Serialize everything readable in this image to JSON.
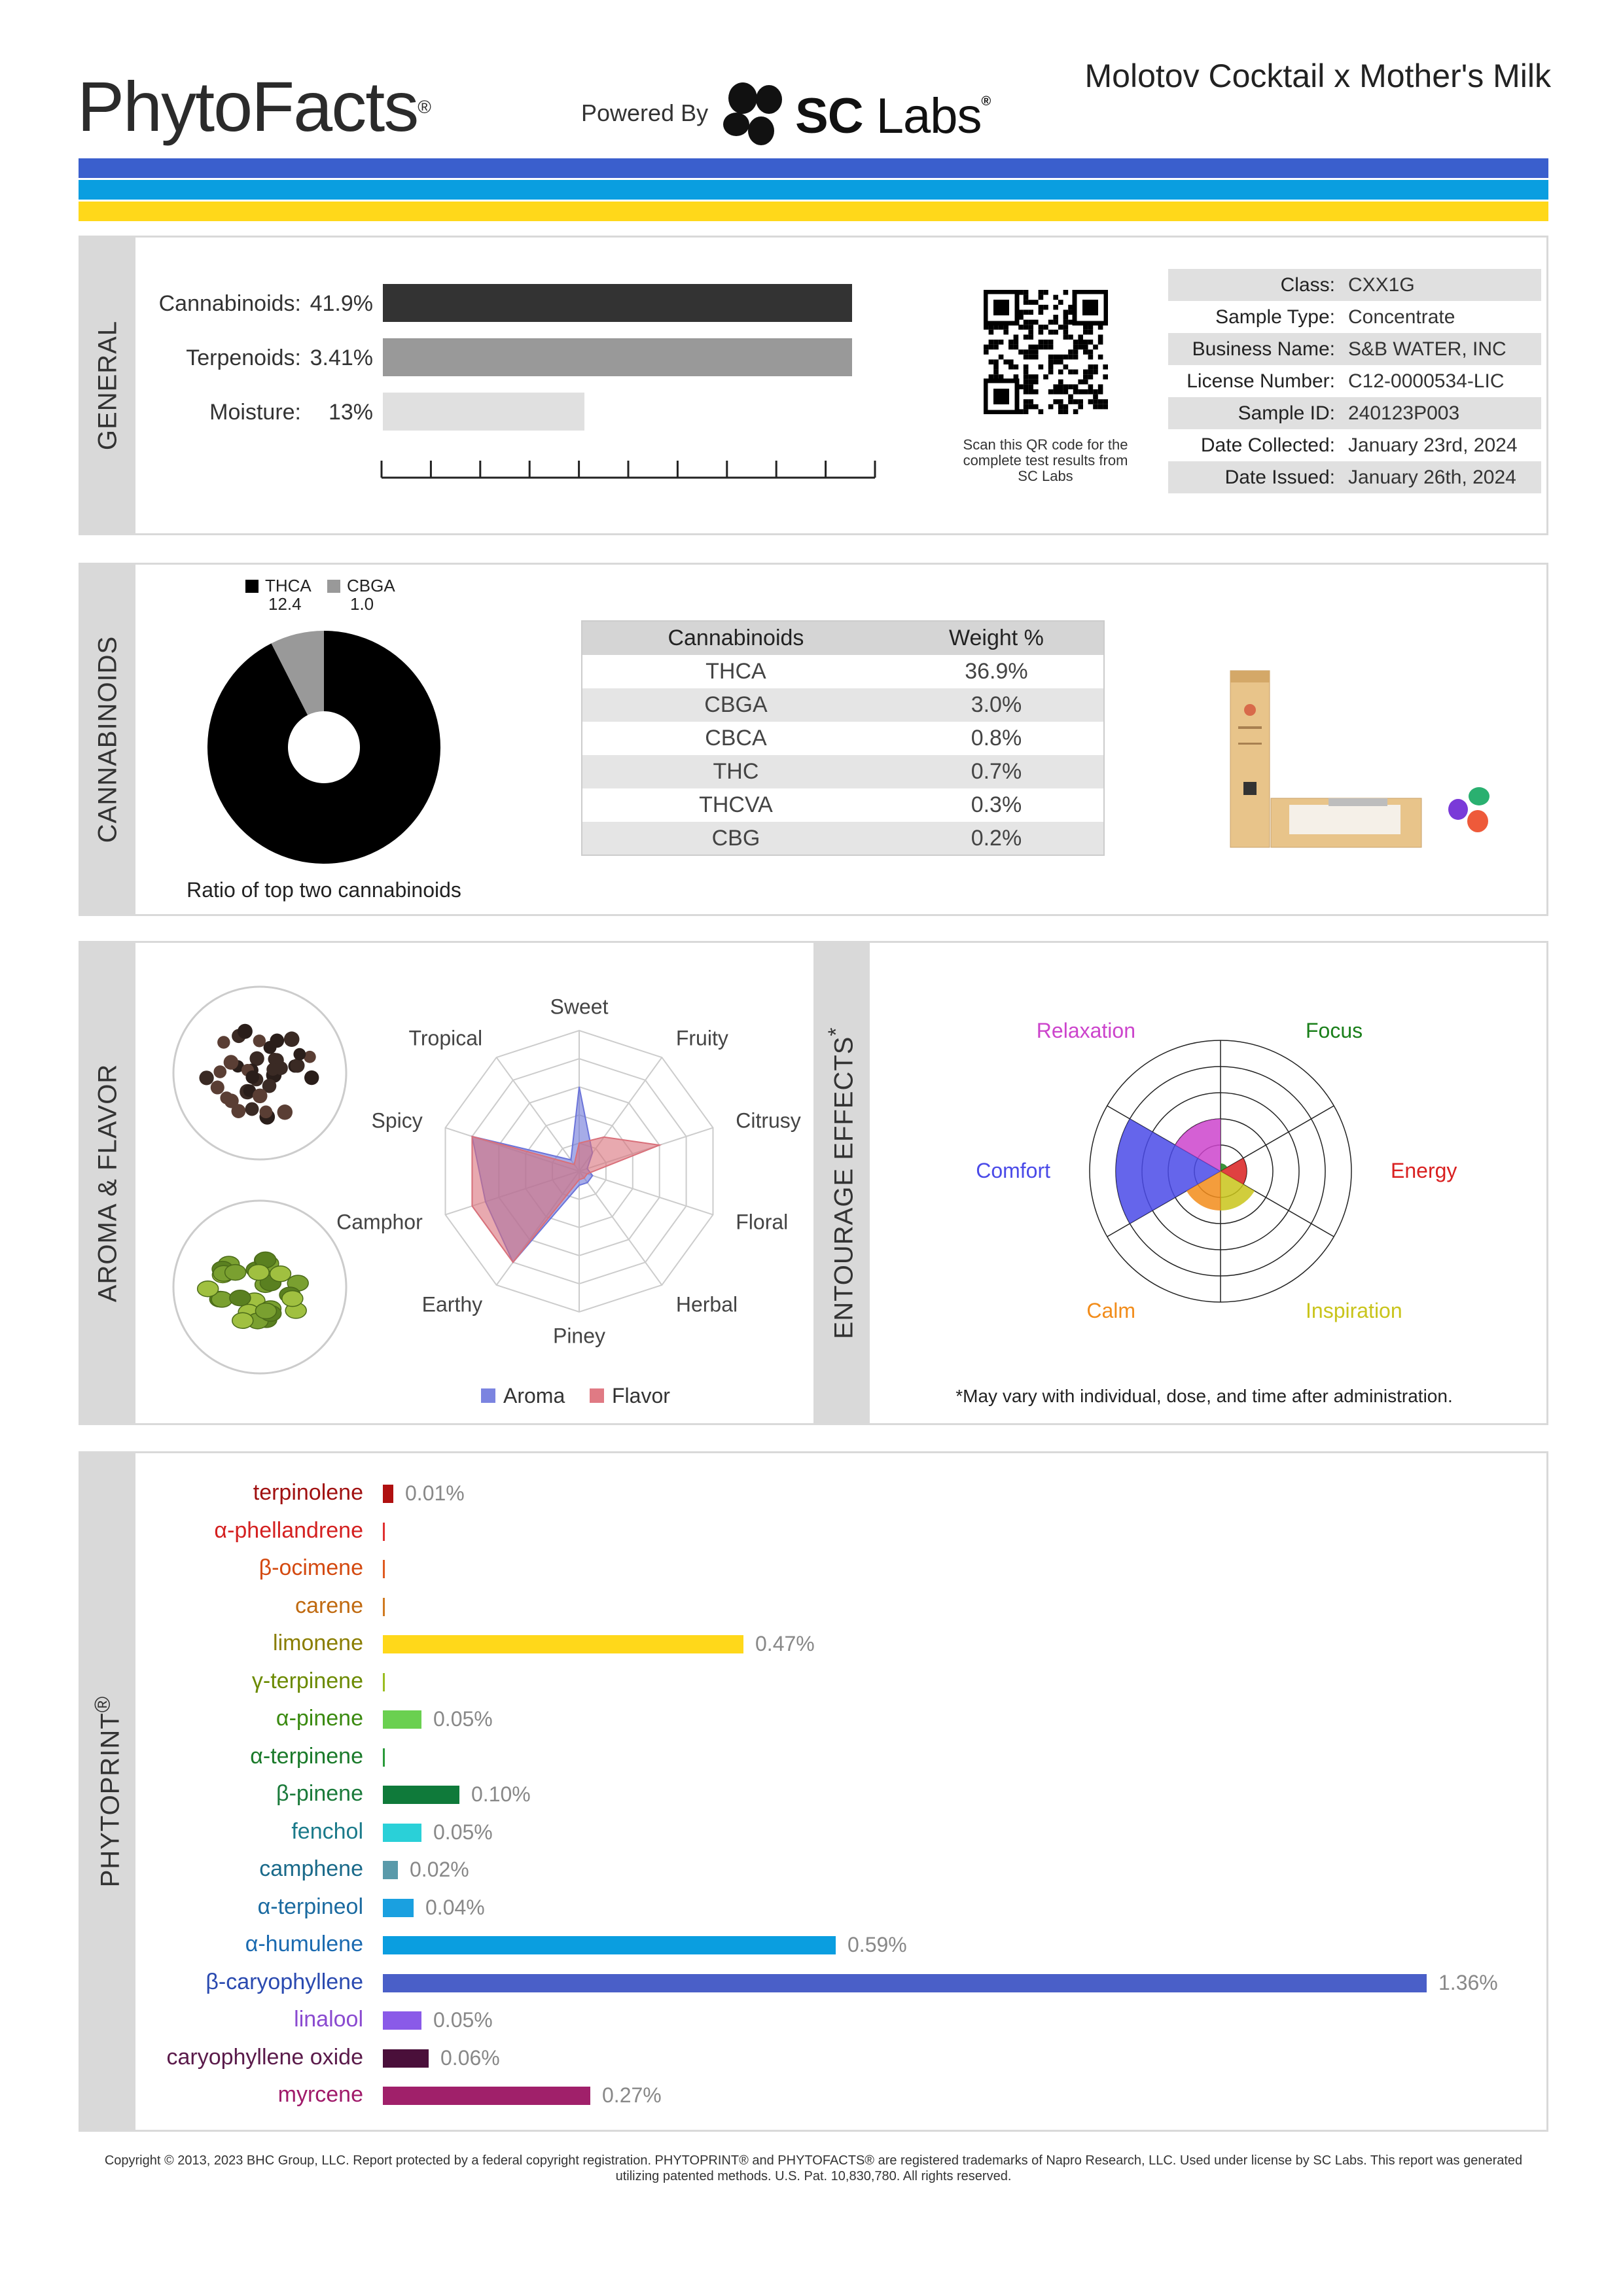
{
  "header": {
    "logo_text": "PhytoFacts",
    "logo_reg": "®",
    "powered_by": "Powered By",
    "partner_bold": "SC",
    "partner_light": " Labs",
    "partner_reg": "®",
    "strain_name": "Molotov Cocktail x Mother's Milk",
    "stripe_colors": [
      "#3a5fcd",
      "#0a9ee0",
      "#ffd81a"
    ]
  },
  "general": {
    "section_label": "GENERAL",
    "bars": [
      {
        "label": "Cannabinoids:",
        "value": "41.9%",
        "fraction": 1.0,
        "color": "#333333"
      },
      {
        "label": "Terpenoids:",
        "value": "3.41%",
        "fraction": 1.0,
        "color": "#999999"
      },
      {
        "label": "Moisture:",
        "value": "13%",
        "fraction": 0.43,
        "color": "#e0e0e0"
      }
    ],
    "qr_caption": "Scan this QR code for the complete test results from SC Labs",
    "info": [
      {
        "key": "Class:",
        "value": "CXX1G"
      },
      {
        "key": "Sample Type:",
        "value": "Concentrate"
      },
      {
        "key": "Business Name:",
        "value": "S&B WATER, INC"
      },
      {
        "key": "License Number:",
        "value": "C12-0000534-LIC"
      },
      {
        "key": "Sample ID:",
        "value": "240123P003"
      },
      {
        "key": "Date Collected:",
        "value": "January 23rd, 2024"
      },
      {
        "key": "Date Issued:",
        "value": "January 26th, 2024"
      }
    ]
  },
  "cannabinoids": {
    "section_label": "CANNABINOIDS",
    "pie_caption": "Ratio of top two cannabinoids",
    "legend": [
      {
        "name": "THCA",
        "value": "12.4",
        "color": "#000000"
      },
      {
        "name": "CBGA",
        "value": "1.0",
        "color": "#999999"
      }
    ],
    "table_headers": [
      "Cannabinoids",
      "Weight %"
    ],
    "table_rows": [
      [
        "THCA",
        "36.9%"
      ],
      [
        "CBGA",
        "3.0%"
      ],
      [
        "CBCA",
        "0.8%"
      ],
      [
        "THC",
        "0.7%"
      ],
      [
        "THCVA",
        "0.3%"
      ],
      [
        "CBG",
        "0.2%"
      ]
    ]
  },
  "chart_data": [
    {
      "type": "pie",
      "labels": [
        "THCA",
        "CBGA"
      ],
      "values": [
        12.4,
        1.0
      ],
      "colors": [
        "#000000",
        "#999999"
      ],
      "title": "Ratio of top two cannabinoids"
    },
    {
      "type": "radar",
      "axes": [
        "Sweet",
        "Fruity",
        "Citrusy",
        "Floral",
        "Herbal",
        "Piney",
        "Earthy",
        "Camphor",
        "Spicy",
        "Tropical"
      ],
      "max": 5,
      "series": [
        {
          "name": "Aroma",
          "color": "#6b74d9",
          "values": [
            3,
            0.8,
            0.3,
            0.5,
            0.5,
            0.5,
            4,
            3.5,
            4,
            0.5
          ]
        },
        {
          "name": "Flavor",
          "color": "#d9707a",
          "values": [
            1,
            1.5,
            3,
            0.3,
            0.3,
            0.3,
            4,
            4,
            4,
            0.3
          ]
        }
      ]
    },
    {
      "type": "polar-area",
      "axes": [
        "Focus",
        "Energy",
        "Inspiration",
        "Calm",
        "Comfort",
        "Relaxation"
      ],
      "max": 5,
      "values": [
        0.3,
        1.0,
        1.5,
        1.5,
        4.0,
        2.0
      ],
      "colors": [
        "#1a7f1a",
        "#d92020",
        "#c9c41a",
        "#f28c1a",
        "#4a4ae8",
        "#cc44cc"
      ]
    },
    {
      "type": "bar",
      "orientation": "horizontal",
      "categories": [
        "terpinolene",
        "α-phellandrene",
        "β-ocimene",
        "carene",
        "limonene",
        "γ-terpinene",
        "α-pinene",
        "α-terpinene",
        "β-pinene",
        "fenchol",
        "camphene",
        "α-terpineol",
        "α-humulene",
        "β-caryophyllene",
        "linalool",
        "caryophyllene oxide",
        "myrcene"
      ],
      "values": [
        0.01,
        0,
        0,
        0,
        0.47,
        0,
        0.05,
        0,
        0.1,
        0.05,
        0.02,
        0.04,
        0.59,
        1.36,
        0.05,
        0.06,
        0.27
      ],
      "xlim": [
        0,
        1.36
      ]
    }
  ],
  "aroma": {
    "section_label": "AROMA & FLAVOR",
    "legend": [
      {
        "name": "Aroma",
        "color": "#7b84e0"
      },
      {
        "name": "Flavor",
        "color": "#e07a84"
      }
    ]
  },
  "entourage": {
    "section_label": "ENTOURAGE EFFECTS",
    "asterisk": "*",
    "footnote": "*May vary with individual, dose, and time after administration."
  },
  "phytoprint": {
    "section_label": "PHYTOPRINT",
    "section_reg": "®",
    "terpenes": [
      {
        "name": "terpinolene",
        "label": "0.01%",
        "name_color": "#a01010",
        "bar_color": "#b01010"
      },
      {
        "name": "α-phellandrene",
        "label": "",
        "name_color": "#d42020",
        "bar_color": "#e03030"
      },
      {
        "name": "β-ocimene",
        "label": "",
        "name_color": "#d44a10",
        "bar_color": "#e05a20"
      },
      {
        "name": "carene",
        "label": "",
        "name_color": "#c06a10",
        "bar_color": "#d07a20"
      },
      {
        "name": "limonene",
        "label": "0.47%",
        "name_color": "#8a7d00",
        "bar_color": "#ffd81a"
      },
      {
        "name": "γ-terpinene",
        "label": "",
        "name_color": "#6b8a00",
        "bar_color": "#9bbd20"
      },
      {
        "name": "α-pinene",
        "label": "0.05%",
        "name_color": "#3a8a10",
        "bar_color": "#6ad050"
      },
      {
        "name": "α-terpinene",
        "label": "",
        "name_color": "#1a7a2a",
        "bar_color": "#2a9a3a"
      },
      {
        "name": "β-pinene",
        "label": "0.10%",
        "name_color": "#1a7a3a",
        "bar_color": "#0f7a3a"
      },
      {
        "name": "fenchol",
        "label": "0.05%",
        "name_color": "#1a7a8a",
        "bar_color": "#2ad0d8"
      },
      {
        "name": "camphene",
        "label": "0.02%",
        "name_color": "#1a6a8a",
        "bar_color": "#5a9aaa"
      },
      {
        "name": "α-terpineol",
        "label": "0.04%",
        "name_color": "#1a6aa0",
        "bar_color": "#1aa0e0"
      },
      {
        "name": "α-humulene",
        "label": "0.59%",
        "name_color": "#1a6ab0",
        "bar_color": "#0a9ee0"
      },
      {
        "name": "β-caryophyllene",
        "label": "1.36%",
        "name_color": "#2a4ab0",
        "bar_color": "#4a5fc8"
      },
      {
        "name": "linalool",
        "label": "0.05%",
        "name_color": "#8a4ad0",
        "bar_color": "#8a5ae8"
      },
      {
        "name": "caryophyllene oxide",
        "label": "0.06%",
        "name_color": "#5a1a4a",
        "bar_color": "#4a0f3a"
      },
      {
        "name": "myrcene",
        "label": "0.27%",
        "name_color": "#a01a6a",
        "bar_color": "#a0206a"
      }
    ]
  },
  "footer": {
    "copyright": "Copyright © 2013, 2023 BHC Group, LLC. Report protected by a federal copyright registration. PHYTOPRINT® and PHYTOFACTS® are registered trademarks of Napro Research, LLC. Used under license by SC Labs. This report was generated utilizing patented methods. U.S. Pat. 10,830,780. All rights reserved."
  }
}
